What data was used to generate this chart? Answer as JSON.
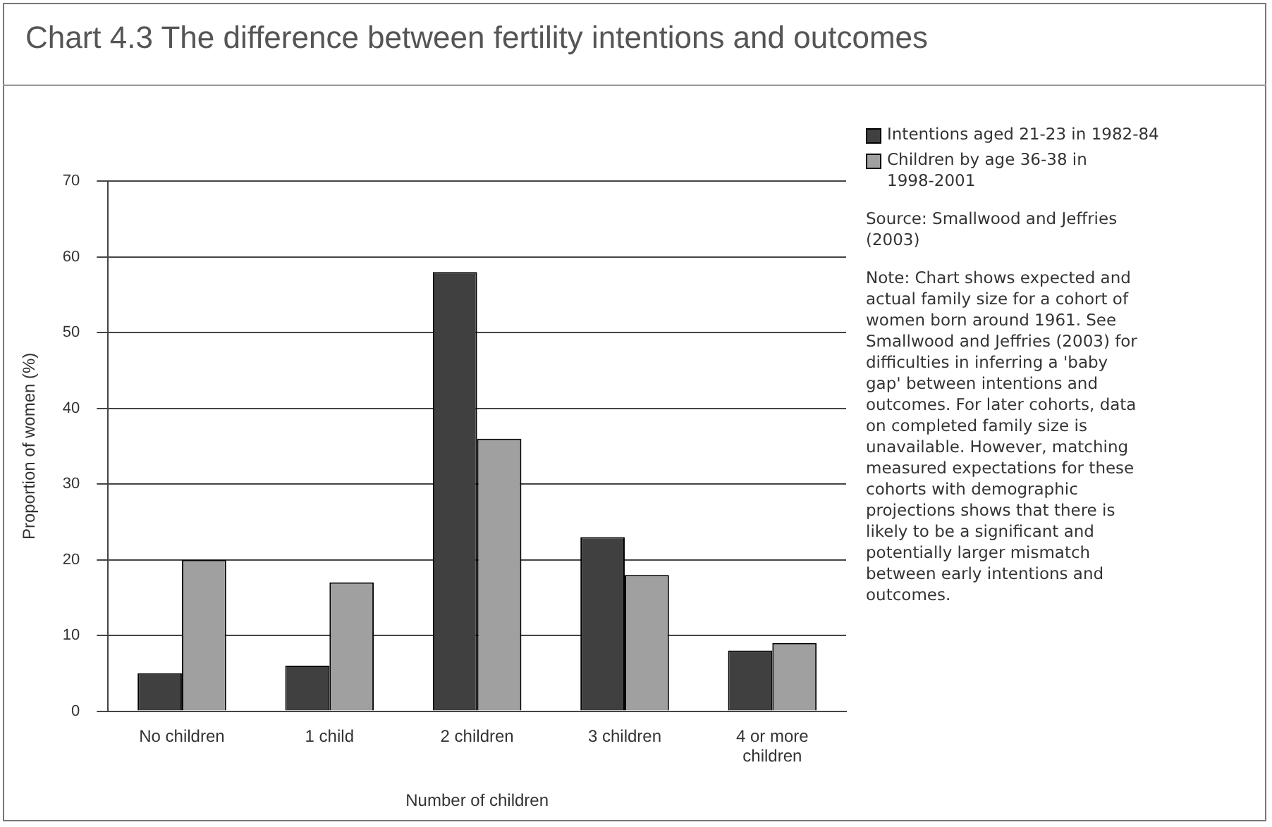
{
  "chart_data": {
    "type": "bar",
    "title": "Chart 4.3 The difference between fertility intentions and outcomes",
    "xlabel": "Number of children",
    "ylabel": "Proportion of women (%)",
    "categories": [
      "No children",
      "1 child",
      "2 children",
      "3 children",
      "4 or more children"
    ],
    "series": [
      {
        "name": "Intentions aged 21-23 in 1982-84",
        "color": "#404040",
        "values": [
          5,
          6,
          58,
          23,
          8
        ]
      },
      {
        "name": "Children by age 36-38 in 1998-2001",
        "color": "#a0a0a0",
        "values": [
          20,
          17,
          36,
          18,
          9
        ]
      }
    ],
    "ylim": [
      0,
      70
    ],
    "yticks": [
      0,
      10,
      20,
      30,
      40,
      50,
      60,
      70
    ],
    "grid": "y",
    "legend": "top right",
    "annotations": [
      "Source: Smallwood and Jeffries (2003)",
      "Note: Chart shows expected and actual family size for a cohort of women born around 1961. See Smallwood and Jeffries (2003) for difficulties in inferring a 'baby gap' between intentions and outcomes. For later cohorts, data on completed family size is unavailable. However, matching measured expectations for these cohorts with demographic projections shows that there is likely to be a significant and potentially larger mismatch between early intentions and outcomes."
    ]
  }
}
